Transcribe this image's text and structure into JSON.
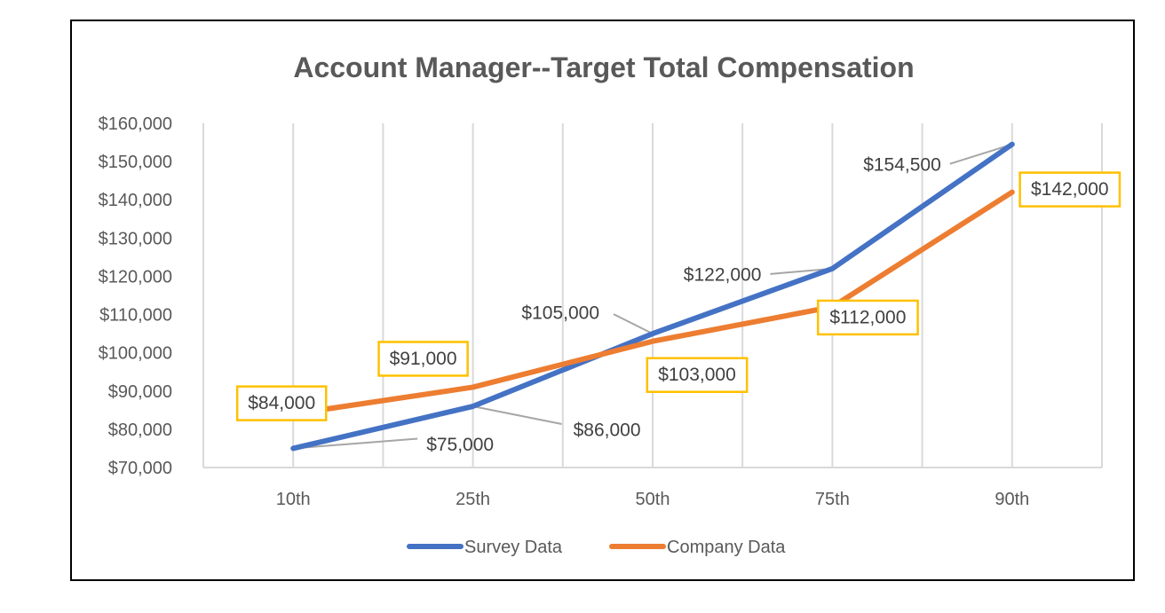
{
  "chart_data": {
    "type": "line",
    "title": "Account Manager--Target Total Compensation",
    "categories": [
      "10th",
      "25th",
      "50th",
      "75th",
      "90th"
    ],
    "ylim": [
      70000,
      160000
    ],
    "y_ticks": [
      "$70,000",
      "$80,000",
      "$90,000",
      "$100,000",
      "$110,000",
      "$120,000",
      "$130,000",
      "$140,000",
      "$150,000",
      "$160,000"
    ],
    "grid": "vertical",
    "legend": "bottom",
    "series": [
      {
        "name": "Survey Data",
        "color": "#4472C4",
        "values": [
          75000,
          86000,
          105000,
          122000,
          154500
        ],
        "labels": [
          "$75,000",
          "$86,000",
          "$105,000",
          "$122,000",
          "$154,500"
        ]
      },
      {
        "name": "Company Data",
        "color": "#ED7D31",
        "label_border_color": "#FFC000",
        "values": [
          84000,
          91000,
          103000,
          112000,
          142000
        ],
        "labels": [
          "$84,000",
          "$91,000",
          "$103,000",
          "$112,000",
          "$142,000"
        ]
      }
    ]
  }
}
